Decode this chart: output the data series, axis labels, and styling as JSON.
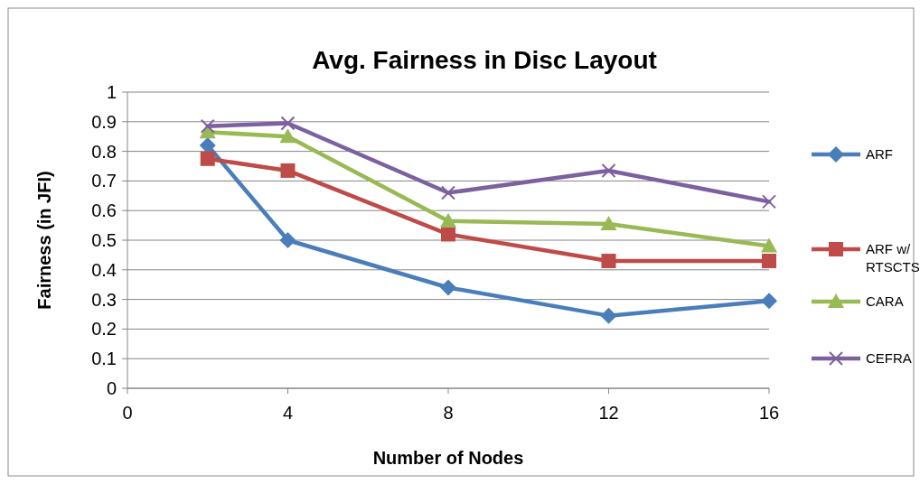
{
  "chart_data": {
    "type": "line",
    "title": "Avg. Fairness in Disc Layout",
    "xlabel": "Number of Nodes",
    "ylabel": "Fairness (in JFI)",
    "x": [
      2,
      4,
      8,
      12,
      16
    ],
    "xlim": [
      0,
      16
    ],
    "xticks": [
      0,
      4,
      8,
      12,
      16
    ],
    "ylim": [
      0,
      1
    ],
    "yticks": [
      0,
      0.1,
      0.2,
      0.3,
      0.4,
      0.5,
      0.6,
      0.7,
      0.8,
      0.9,
      1
    ],
    "grid": "y",
    "legend": "right",
    "series": [
      {
        "name": "ARF",
        "color": "#4a7ebb",
        "marker": "diamond",
        "values": [
          0.82,
          0.5,
          0.34,
          0.245,
          0.295
        ]
      },
      {
        "name": "ARF w/ RTSCTS",
        "color": "#be4b48",
        "marker": "square",
        "values": [
          0.775,
          0.735,
          0.52,
          0.43,
          0.43
        ]
      },
      {
        "name": "CARA",
        "color": "#98b954",
        "marker": "triangle",
        "values": [
          0.865,
          0.85,
          0.565,
          0.555,
          0.48
        ]
      },
      {
        "name": "CEFRA",
        "color": "#7d60a0",
        "marker": "cross",
        "values": [
          0.885,
          0.895,
          0.66,
          0.735,
          0.63
        ]
      }
    ]
  }
}
